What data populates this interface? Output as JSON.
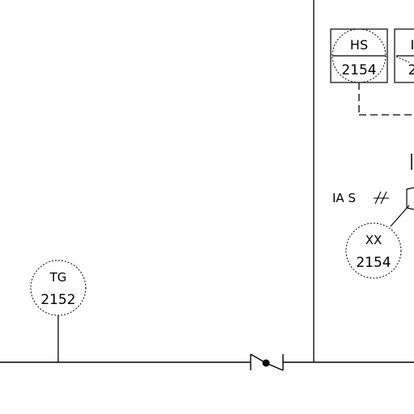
{
  "diagram": {
    "instruments": {
      "hs": {
        "tag": "HS",
        "number": "2154"
      },
      "partial": {
        "tag": "I",
        "number": "2"
      },
      "xx": {
        "tag": "XX",
        "number": "2154"
      },
      "tg": {
        "tag": "TG",
        "number": "2152"
      }
    },
    "signal_label": "IA S"
  }
}
